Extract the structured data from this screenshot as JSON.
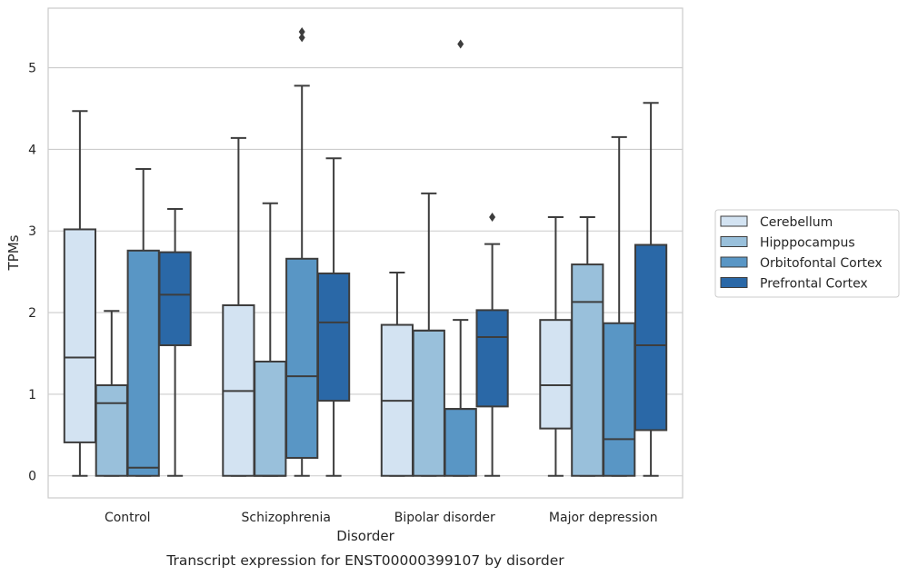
{
  "chart_data": {
    "type": "box",
    "caption": "Transcript expression for ENST00000399107 by disorder",
    "xlabel": "Disorder",
    "ylabel": "TPMs",
    "ylim": [
      -0.27,
      5.73
    ],
    "yticks": [
      0,
      1,
      2,
      3,
      4,
      5
    ],
    "grid": "horizontal",
    "legend_position": "right",
    "categories": [
      "Control",
      "Schizophrenia",
      "Bipolar disorder",
      "Major depression"
    ],
    "series": [
      {
        "name": "Cerebellum",
        "color": "#d3e3f2",
        "boxes": [
          {
            "whislo": 0,
            "q1": 0.41,
            "med": 1.45,
            "q3": 3.02,
            "whishi": 4.47,
            "fliers": []
          },
          {
            "whislo": 0,
            "q1": 0,
            "med": 1.04,
            "q3": 2.09,
            "whishi": 4.14,
            "fliers": []
          },
          {
            "whislo": 0,
            "q1": 0,
            "med": 0.92,
            "q3": 1.85,
            "whishi": 2.49,
            "fliers": []
          },
          {
            "whislo": 0,
            "q1": 0.58,
            "med": 1.11,
            "q3": 1.91,
            "whishi": 3.17,
            "fliers": []
          }
        ]
      },
      {
        "name": "Hipppocampus",
        "color": "#99c0db",
        "boxes": [
          {
            "whislo": 0,
            "q1": 0,
            "med": 0.89,
            "q3": 1.11,
            "whishi": 2.02,
            "fliers": []
          },
          {
            "whislo": 0,
            "q1": 0,
            "med": 0,
            "q3": 1.4,
            "whishi": 3.34,
            "fliers": []
          },
          {
            "whislo": 0,
            "q1": 0,
            "med": 1.78,
            "q3": 1.78,
            "whishi": 3.46,
            "fliers": []
          },
          {
            "whislo": 0,
            "q1": 0,
            "med": 2.13,
            "q3": 2.59,
            "whishi": 3.17,
            "fliers": []
          }
        ]
      },
      {
        "name": "Orbitofontal Cortex",
        "color": "#5996c5",
        "boxes": [
          {
            "whislo": 0,
            "q1": 0,
            "med": 0.1,
            "q3": 2.76,
            "whishi": 3.76,
            "fliers": []
          },
          {
            "whislo": 0,
            "q1": 0.22,
            "med": 1.22,
            "q3": 2.66,
            "whishi": 4.78,
            "fliers": [
              5.37,
              5.44
            ]
          },
          {
            "whislo": 0,
            "q1": 0,
            "med": 0.82,
            "q3": 0.82,
            "whishi": 1.91,
            "fliers": [
              5.29
            ]
          },
          {
            "whislo": 0,
            "q1": 0,
            "med": 0.45,
            "q3": 1.87,
            "whishi": 4.15,
            "fliers": []
          }
        ]
      },
      {
        "name": "Prefrontal Cortex",
        "color": "#2a68a7",
        "boxes": [
          {
            "whislo": 0,
            "q1": 1.6,
            "med": 2.22,
            "q3": 2.74,
            "whishi": 3.27,
            "fliers": []
          },
          {
            "whislo": 0,
            "q1": 0.92,
            "med": 1.88,
            "q3": 2.48,
            "whishi": 3.89,
            "fliers": []
          },
          {
            "whislo": 0,
            "q1": 0.85,
            "med": 1.7,
            "q3": 2.03,
            "whishi": 2.84,
            "fliers": [
              3.17
            ]
          },
          {
            "whislo": 0,
            "q1": 0.56,
            "med": 1.6,
            "q3": 2.83,
            "whishi": 4.57,
            "fliers": []
          }
        ]
      }
    ]
  }
}
